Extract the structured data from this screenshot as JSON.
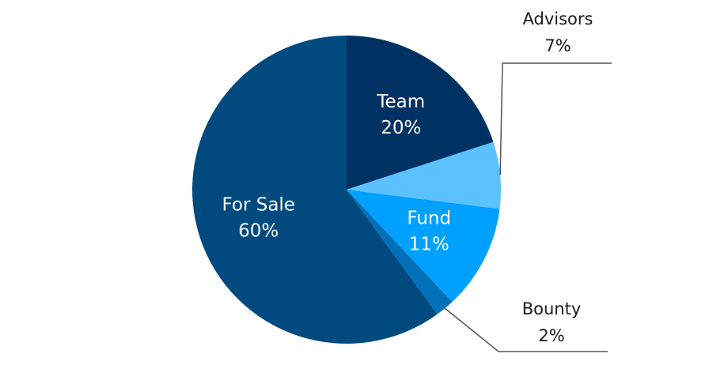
{
  "chart_data": {
    "type": "pie",
    "labels": [
      "Team",
      "Advisors",
      "Fund",
      "Bounty",
      "For Sale"
    ],
    "values": [
      20,
      7,
      11,
      2,
      60
    ],
    "value_labels": [
      "20%",
      "7%",
      "11%",
      "2%",
      "60%"
    ],
    "colors": [
      "#003263",
      "#5bc2ff",
      "#00a0ff",
      "#0070b8",
      "#004a7f"
    ]
  }
}
